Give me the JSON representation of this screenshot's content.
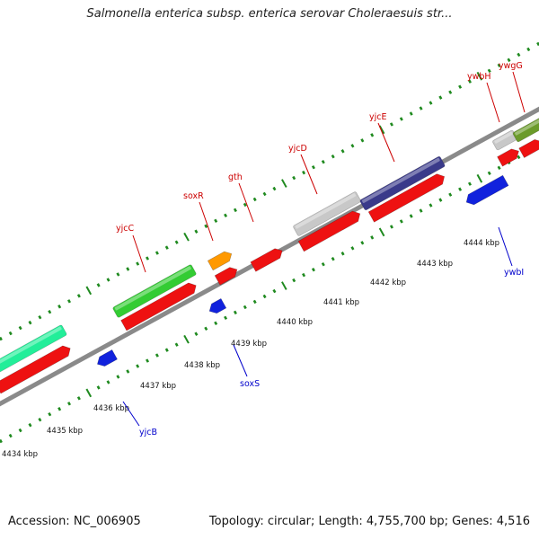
{
  "title": "Salmonella enterica subsp. enterica serovar Choleraesuis str...",
  "footer": {
    "accession": "Accession: NC_006905",
    "topology": "Topology: circular; Length: 4,755,700 bp; Genes: 4,516"
  },
  "colors": {
    "backbone": "#8a8a8a",
    "tick": "#1f8a1f",
    "forward_label": "#cc0000",
    "reverse_label": "#0000cc",
    "cds": "#ee1111",
    "blue_gene": "#1122dd",
    "mint": "#22ee99",
    "green": "#33cc33",
    "orange": "#ff9900",
    "gray": "#c8c8c8",
    "navy": "#3a3a8a",
    "olive": "#6b9b2a"
  },
  "scale": {
    "unit": "kbp",
    "labels": [
      "4434 kbp",
      "4435 kbp",
      "4436 kbp",
      "4437 kbp",
      "4438 kbp",
      "4439 kbp",
      "4440 kbp",
      "4441 kbp",
      "4442 kbp",
      "4443 kbp",
      "4444 kbp"
    ]
  },
  "gene_labels": {
    "forward": [
      "yjcC",
      "soxR",
      "gth",
      "yjcD",
      "yjcE",
      "ywbH",
      "ywgG"
    ],
    "reverse": [
      "yjcB",
      "soxS",
      "ywbI"
    ]
  }
}
